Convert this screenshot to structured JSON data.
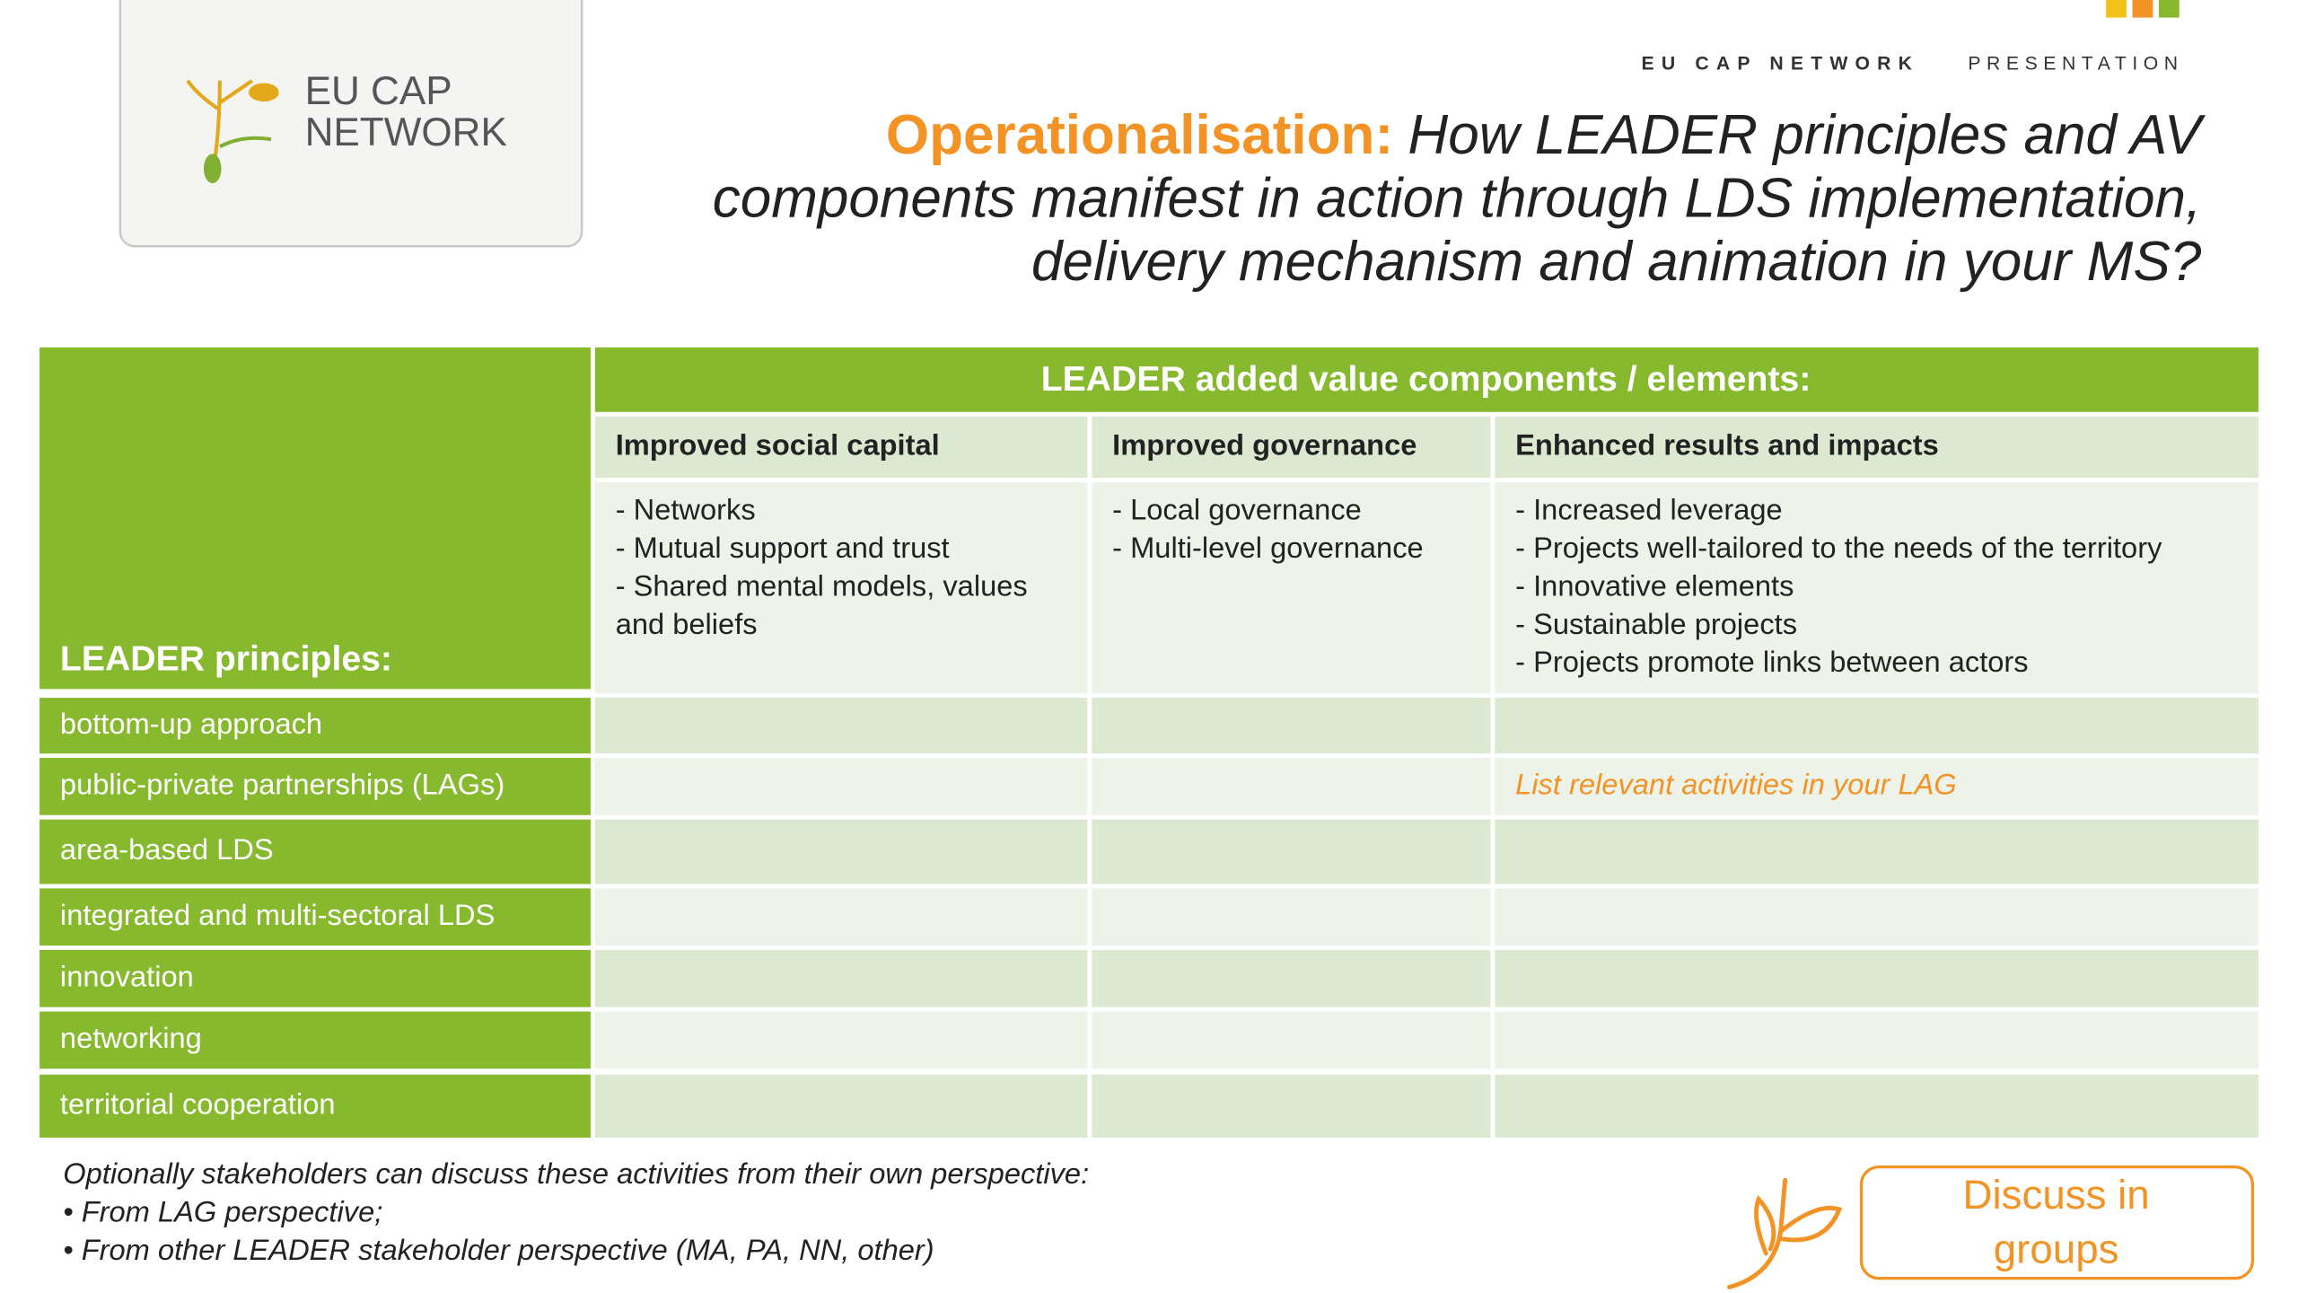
{
  "logo": {
    "lines": [
      "EU CAP",
      "NETWORK"
    ]
  },
  "header": {
    "brand": "EU CAP NETWORK",
    "label": "PRESENTATION"
  },
  "title": {
    "highlight": "Operationalisation:",
    "lines": [
      "How LEADER principles and AV",
      "components manifest in action through LDS implementation,",
      "delivery mechanism and animation in your MS?"
    ]
  },
  "table": {
    "corner": "LEADER principles:",
    "group_header": "LEADER added value components / elements:",
    "columns": [
      {
        "heading": "Improved social capital",
        "lines": [
          "- Networks",
          "- Mutual support and trust",
          "- Shared mental models, values",
          "and beliefs"
        ]
      },
      {
        "heading": "Improved governance",
        "lines": [
          "- Local governance",
          "- Multi-level governance"
        ]
      },
      {
        "heading": "Enhanced results and impacts",
        "lines": [
          "- Increased leverage",
          "- Projects well-tailored to the needs of the territory",
          "- Innovative elements",
          "- Sustainable projects",
          "- Projects promote links between actors"
        ]
      }
    ],
    "rows": [
      "bottom-up approach",
      "public-private partnerships (LAGs)",
      "area-based LDS",
      "integrated and multi-sectoral LDS",
      "innovation",
      "networking",
      "territorial cooperation"
    ],
    "placeholder": "List relevant activities in your LAG"
  },
  "footer": {
    "lines": [
      "Optionally stakeholders can discuss these activities from their own perspective:",
      "• From LAG perspective;",
      "• From other LEADER stakeholder perspective (MA, PA, NN, other)"
    ]
  },
  "button": {
    "lines": [
      "Discuss in",
      "groups"
    ]
  }
}
